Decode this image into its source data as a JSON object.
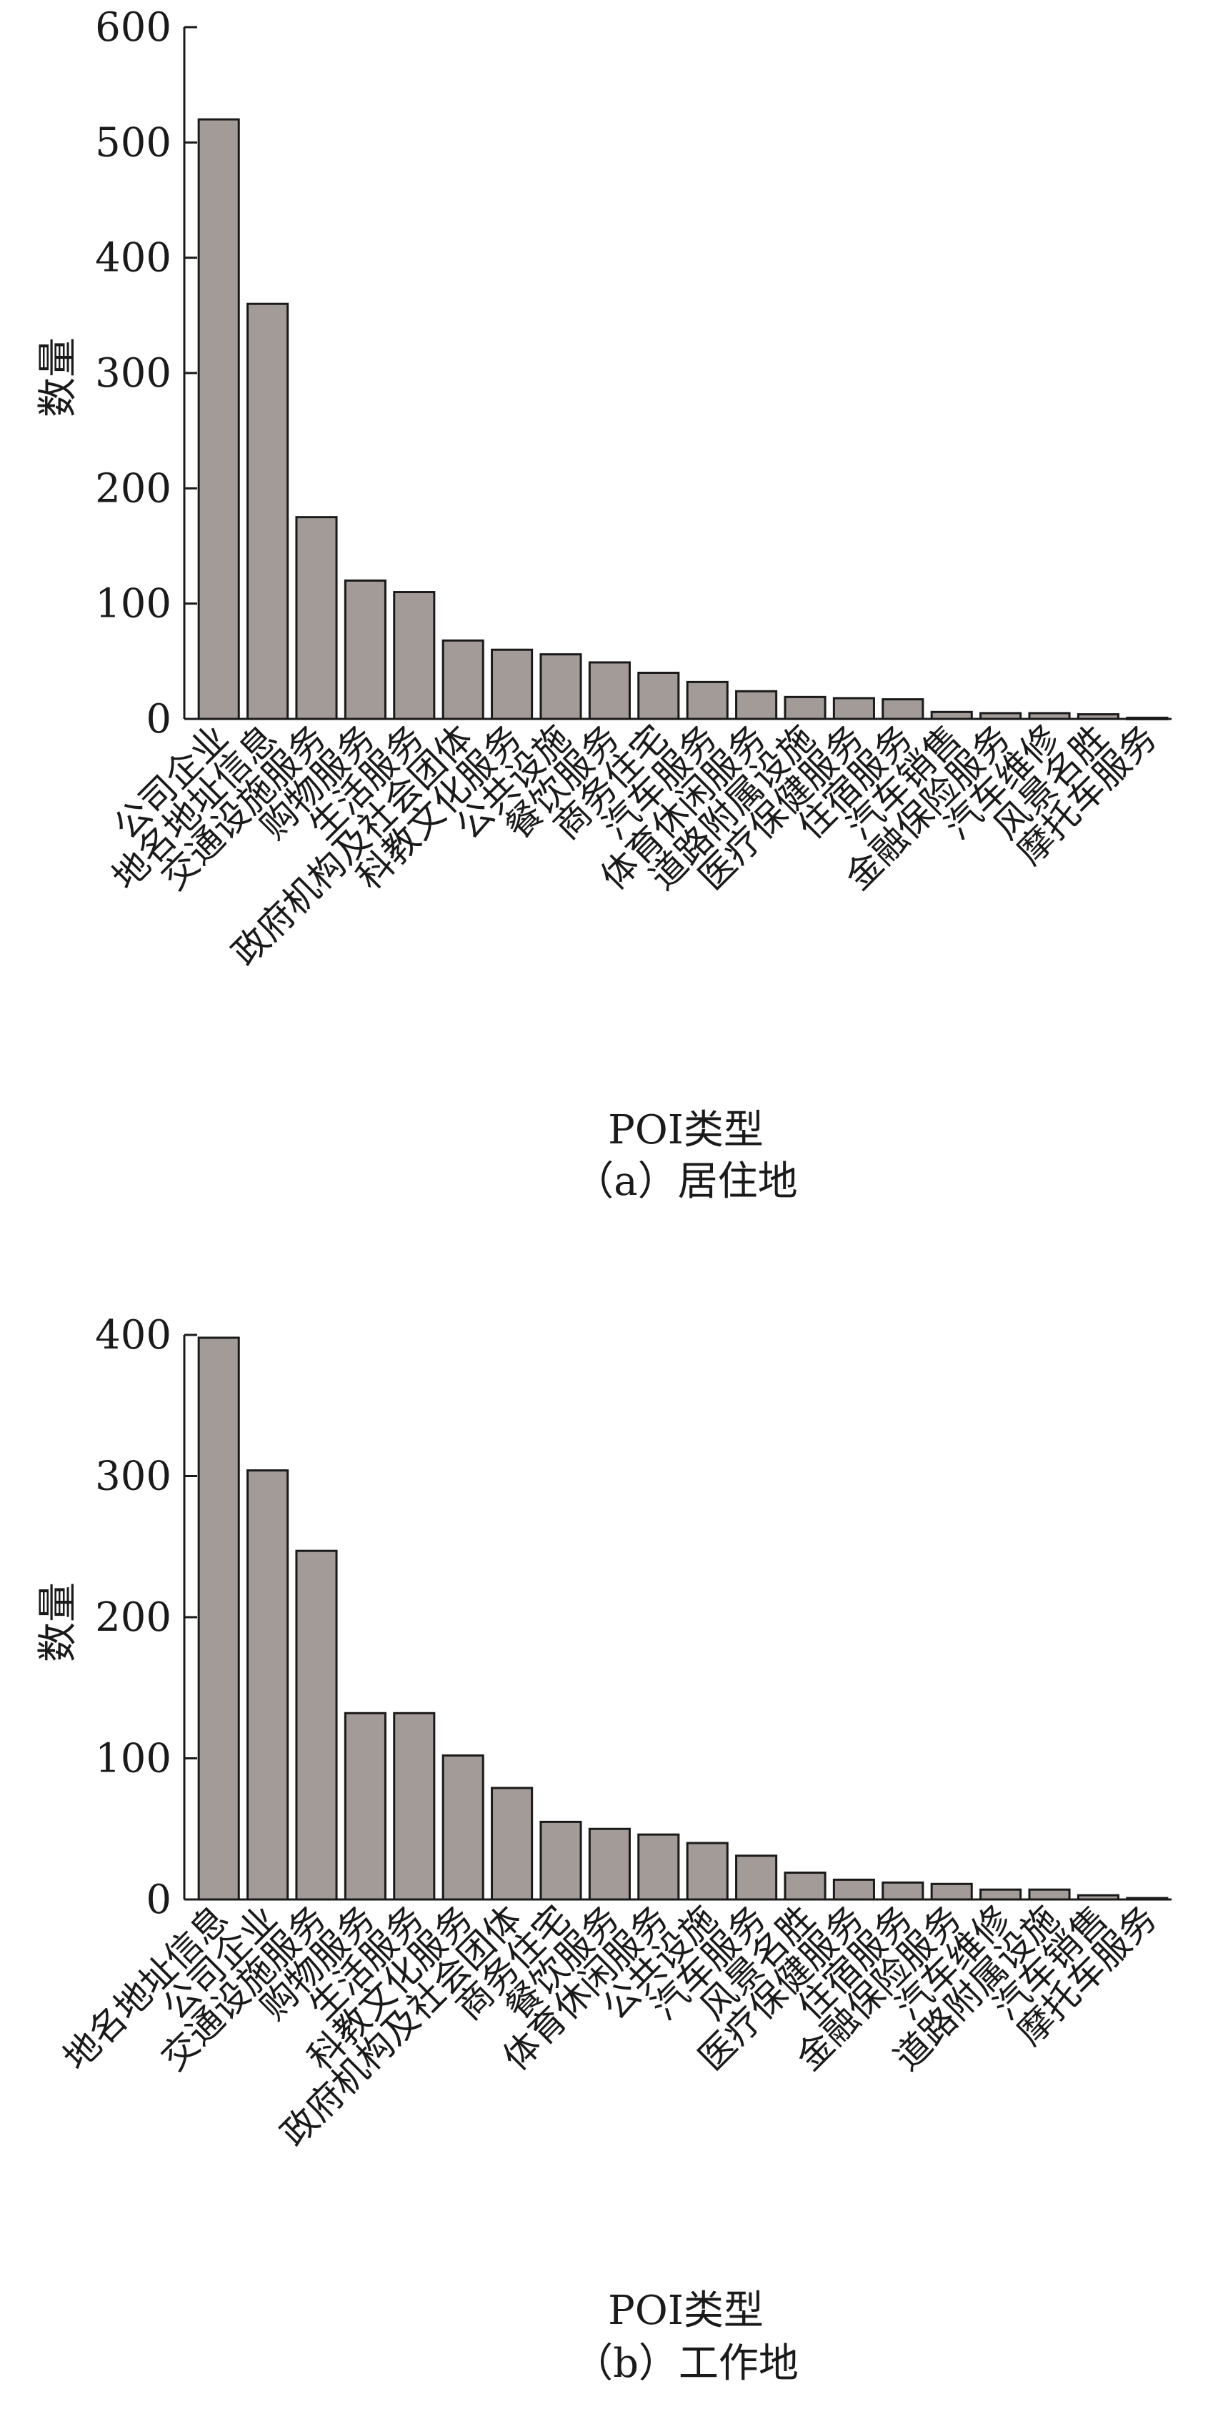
{
  "chart_data": [
    {
      "type": "bar",
      "caption": "（a）居住地",
      "xlabel": "POI类型",
      "ylabel": "数量",
      "ylim": [
        0,
        600
      ],
      "yticks": [
        0,
        100,
        200,
        300,
        400,
        500,
        600
      ],
      "categories": [
        "公司企业",
        "地名地址信息",
        "交通设施服务",
        "购物服务",
        "生活服务",
        "政府机构及社会团体",
        "科教文化服务",
        "公共设施",
        "餐饮服务",
        "商务住宅",
        "汽车服务",
        "体育休闲服务",
        "道路附属设施",
        "医疗保健服务",
        "住宿服务",
        "汽车销售",
        "金融保险服务",
        "汽车维修",
        "风景名胜",
        "摩托车服务"
      ],
      "values": [
        520,
        360,
        175,
        120,
        110,
        68,
        60,
        56,
        49,
        40,
        32,
        24,
        19,
        18,
        17,
        6,
        5,
        5,
        4,
        1
      ],
      "bar_color": "#a39b98",
      "grid": false
    },
    {
      "type": "bar",
      "caption": "（b）工作地",
      "xlabel": "POI类型",
      "ylabel": "数量",
      "ylim": [
        0,
        400
      ],
      "yticks": [
        0,
        100,
        200,
        300,
        400
      ],
      "categories": [
        "地名地址信息",
        "公司企业",
        "交通设施服务",
        "购物服务",
        "生活服务",
        "科教文化服务",
        "政府机构及社会团体",
        "商务住宅",
        "餐饮服务",
        "体育休闲服务",
        "公共设施",
        "汽车服务",
        "风景名胜",
        "医疗保健服务",
        "住宿服务",
        "金融保险服务",
        "汽车维修",
        "道路附属设施",
        "汽车销售",
        "摩托车服务"
      ],
      "values": [
        398,
        304,
        247,
        132,
        132,
        102,
        79,
        55,
        50,
        46,
        40,
        31,
        19,
        14,
        12,
        11,
        7,
        7,
        3,
        1
      ],
      "bar_color": "#a39b98",
      "grid": false
    }
  ]
}
